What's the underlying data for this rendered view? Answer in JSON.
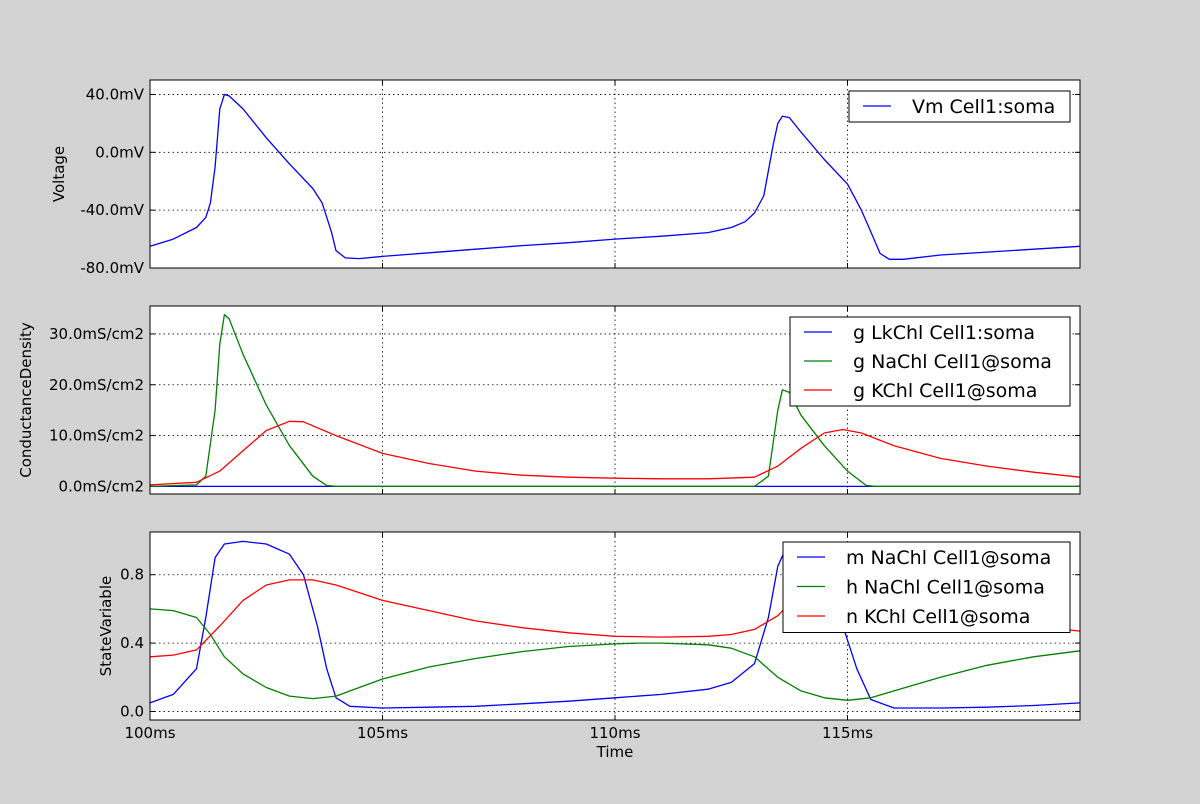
{
  "colors": {
    "figure_bg": "#d3d3d3",
    "plot_bg": "#ffffff",
    "blue": "#0000ff",
    "green": "#008000",
    "red": "#ff0000"
  },
  "shared_x": {
    "label": "Time",
    "range": [
      100,
      120
    ],
    "ticks": [
      100,
      105,
      110,
      115
    ],
    "tick_labels": [
      "100ms",
      "105ms",
      "110ms",
      "115ms"
    ]
  },
  "chart_data": [
    {
      "type": "line",
      "ylabel": "Voltage",
      "xlabel": "",
      "xlim": [
        100,
        120
      ],
      "ylim": [
        -80,
        50
      ],
      "yticks": [
        -80,
        -40,
        0,
        40
      ],
      "ytick_labels": [
        "-80.0mV",
        "-40.0mV",
        "0.0mV",
        "40.0mV"
      ],
      "grid": true,
      "legend_position": "top-right",
      "series": [
        {
          "name": "Vm Cell1:soma",
          "color": "#0000ff",
          "points": [
            [
              100,
              -65
            ],
            [
              100.5,
              -60
            ],
            [
              101,
              -52
            ],
            [
              101.2,
              -45
            ],
            [
              101.3,
              -35
            ],
            [
              101.4,
              -10
            ],
            [
              101.5,
              30
            ],
            [
              101.6,
              40
            ],
            [
              101.7,
              39
            ],
            [
              102,
              30
            ],
            [
              102.5,
              10
            ],
            [
              103,
              -8
            ],
            [
              103.5,
              -25
            ],
            [
              103.7,
              -35
            ],
            [
              103.9,
              -55
            ],
            [
              104,
              -68
            ],
            [
              104.2,
              -73
            ],
            [
              104.5,
              -73.5
            ],
            [
              105,
              -72
            ],
            [
              106,
              -69.5
            ],
            [
              107,
              -67
            ],
            [
              108,
              -64.5
            ],
            [
              109,
              -62.5
            ],
            [
              110,
              -60
            ],
            [
              111,
              -58
            ],
            [
              112,
              -55.5
            ],
            [
              112.5,
              -52
            ],
            [
              112.8,
              -48
            ],
            [
              113,
              -42
            ],
            [
              113.2,
              -30
            ],
            [
              113.4,
              5
            ],
            [
              113.5,
              20
            ],
            [
              113.6,
              25
            ],
            [
              113.75,
              24
            ],
            [
              114,
              14
            ],
            [
              114.5,
              -5
            ],
            [
              115,
              -22
            ],
            [
              115.3,
              -40
            ],
            [
              115.5,
              -55
            ],
            [
              115.7,
              -70
            ],
            [
              115.9,
              -74
            ],
            [
              116.2,
              -74
            ],
            [
              117,
              -71
            ],
            [
              118,
              -69
            ],
            [
              119,
              -67
            ],
            [
              120,
              -65
            ]
          ]
        }
      ]
    },
    {
      "type": "line",
      "ylabel": "ConductanceDensity",
      "xlabel": "",
      "xlim": [
        100,
        120
      ],
      "ylim": [
        -1.5,
        35.5
      ],
      "yticks": [
        0,
        10,
        20,
        30
      ],
      "ytick_labels": [
        "0.0mS/cm2",
        "10.0mS/cm2",
        "20.0mS/cm2",
        "30.0mS/cm2"
      ],
      "grid": true,
      "legend_position": "top-right",
      "series": [
        {
          "name": "g LkChl Cell1:soma",
          "color": "#0000ff",
          "points": [
            [
              100,
              0
            ],
            [
              120,
              0
            ]
          ]
        },
        {
          "name": "g NaChl Cell1@soma",
          "color": "#008000",
          "points": [
            [
              100,
              0
            ],
            [
              101,
              0.3
            ],
            [
              101.2,
              2
            ],
            [
              101.4,
              15
            ],
            [
              101.5,
              28
            ],
            [
              101.6,
              33.8
            ],
            [
              101.7,
              33
            ],
            [
              102,
              26
            ],
            [
              102.5,
              16
            ],
            [
              103,
              8
            ],
            [
              103.5,
              2
            ],
            [
              103.8,
              0.2
            ],
            [
              104,
              0
            ],
            [
              113,
              0
            ],
            [
              113.3,
              2
            ],
            [
              113.5,
              15
            ],
            [
              113.6,
              19
            ],
            [
              113.75,
              18.5
            ],
            [
              114,
              14
            ],
            [
              114.5,
              8
            ],
            [
              115,
              3
            ],
            [
              115.4,
              0.2
            ],
            [
              115.6,
              0
            ],
            [
              120,
              0
            ]
          ]
        },
        {
          "name": "g KChl Cell1@soma",
          "color": "#ff0000",
          "points": [
            [
              100,
              0.3
            ],
            [
              101,
              0.8
            ],
            [
              101.5,
              3
            ],
            [
              102,
              7
            ],
            [
              102.5,
              11
            ],
            [
              103,
              12.8
            ],
            [
              103.3,
              12.7
            ],
            [
              104,
              10
            ],
            [
              105,
              6.5
            ],
            [
              106,
              4.5
            ],
            [
              107,
              3
            ],
            [
              108,
              2.2
            ],
            [
              109,
              1.8
            ],
            [
              110,
              1.6
            ],
            [
              111,
              1.5
            ],
            [
              112,
              1.5
            ],
            [
              113,
              1.8
            ],
            [
              113.5,
              4
            ],
            [
              114,
              7.5
            ],
            [
              114.5,
              10.5
            ],
            [
              114.9,
              11.2
            ],
            [
              115.3,
              10.5
            ],
            [
              116,
              8
            ],
            [
              117,
              5.5
            ],
            [
              118,
              4
            ],
            [
              119,
              2.8
            ],
            [
              120,
              1.8
            ]
          ]
        }
      ]
    },
    {
      "type": "line",
      "ylabel": "StateVariable",
      "xlabel": "Time",
      "xlim": [
        100,
        120
      ],
      "ylim": [
        -0.05,
        1.05
      ],
      "yticks": [
        0,
        0.4,
        0.8
      ],
      "ytick_labels": [
        "0.0",
        "0.4",
        "0.8"
      ],
      "grid": true,
      "legend_position": "top-right",
      "series": [
        {
          "name": "m NaChl Cell1@soma",
          "color": "#0000ff",
          "points": [
            [
              100,
              0.05
            ],
            [
              100.5,
              0.1
            ],
            [
              101,
              0.25
            ],
            [
              101.2,
              0.55
            ],
            [
              101.4,
              0.9
            ],
            [
              101.6,
              0.98
            ],
            [
              102,
              0.995
            ],
            [
              102.5,
              0.98
            ],
            [
              103,
              0.92
            ],
            [
              103.3,
              0.8
            ],
            [
              103.6,
              0.5
            ],
            [
              103.8,
              0.25
            ],
            [
              104,
              0.08
            ],
            [
              104.3,
              0.03
            ],
            [
              105,
              0.02
            ],
            [
              106,
              0.025
            ],
            [
              107,
              0.03
            ],
            [
              108,
              0.045
            ],
            [
              109,
              0.06
            ],
            [
              110,
              0.08
            ],
            [
              111,
              0.1
            ],
            [
              112,
              0.13
            ],
            [
              112.5,
              0.17
            ],
            [
              113,
              0.28
            ],
            [
              113.3,
              0.55
            ],
            [
              113.5,
              0.85
            ],
            [
              113.7,
              0.97
            ],
            [
              114,
              0.99
            ],
            [
              114.3,
              0.95
            ],
            [
              114.6,
              0.75
            ],
            [
              114.9,
              0.5
            ],
            [
              115.2,
              0.25
            ],
            [
              115.5,
              0.07
            ],
            [
              116,
              0.02
            ],
            [
              117,
              0.02
            ],
            [
              118,
              0.025
            ],
            [
              119,
              0.035
            ],
            [
              120,
              0.05
            ]
          ]
        },
        {
          "name": "h NaChl Cell1@soma",
          "color": "#008000",
          "points": [
            [
              100,
              0.6
            ],
            [
              100.5,
              0.59
            ],
            [
              101,
              0.55
            ],
            [
              101.3,
              0.45
            ],
            [
              101.6,
              0.32
            ],
            [
              102,
              0.22
            ],
            [
              102.5,
              0.14
            ],
            [
              103,
              0.09
            ],
            [
              103.5,
              0.075
            ],
            [
              104,
              0.09
            ],
            [
              104.5,
              0.14
            ],
            [
              105,
              0.19
            ],
            [
              106,
              0.26
            ],
            [
              107,
              0.31
            ],
            [
              108,
              0.35
            ],
            [
              109,
              0.38
            ],
            [
              110,
              0.395
            ],
            [
              110.5,
              0.4
            ],
            [
              111,
              0.4
            ],
            [
              112,
              0.39
            ],
            [
              112.5,
              0.37
            ],
            [
              113,
              0.32
            ],
            [
              113.5,
              0.2
            ],
            [
              114,
              0.12
            ],
            [
              114.5,
              0.08
            ],
            [
              115,
              0.065
            ],
            [
              115.5,
              0.08
            ],
            [
              116,
              0.12
            ],
            [
              117,
              0.2
            ],
            [
              118,
              0.27
            ],
            [
              119,
              0.32
            ],
            [
              120,
              0.355
            ]
          ]
        },
        {
          "name": "n KChl Cell1@soma",
          "color": "#ff0000",
          "points": [
            [
              100,
              0.32
            ],
            [
              100.5,
              0.33
            ],
            [
              101,
              0.36
            ],
            [
              101.5,
              0.5
            ],
            [
              102,
              0.65
            ],
            [
              102.5,
              0.74
            ],
            [
              103,
              0.77
            ],
            [
              103.5,
              0.77
            ],
            [
              104,
              0.74
            ],
            [
              105,
              0.65
            ],
            [
              106,
              0.59
            ],
            [
              107,
              0.53
            ],
            [
              108,
              0.49
            ],
            [
              109,
              0.46
            ],
            [
              110,
              0.44
            ],
            [
              111,
              0.435
            ],
            [
              112,
              0.44
            ],
            [
              112.5,
              0.45
            ],
            [
              113,
              0.48
            ],
            [
              113.5,
              0.56
            ],
            [
              114,
              0.7
            ],
            [
              114.5,
              0.76
            ],
            [
              114.8,
              0.77
            ],
            [
              115.3,
              0.74
            ],
            [
              116,
              0.68
            ],
            [
              117,
              0.6
            ],
            [
              118,
              0.54
            ],
            [
              119,
              0.5
            ],
            [
              120,
              0.47
            ]
          ]
        }
      ]
    }
  ]
}
